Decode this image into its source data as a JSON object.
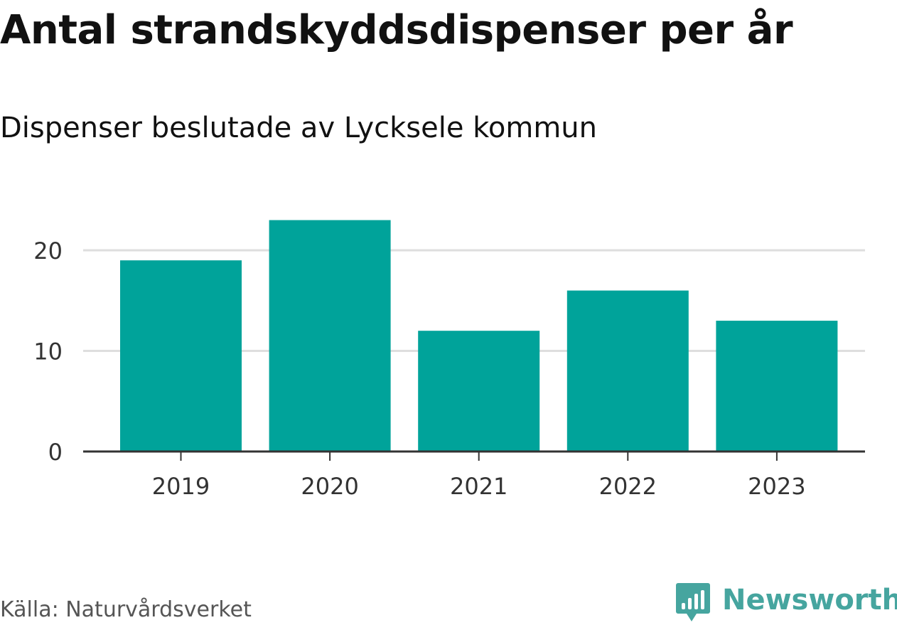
{
  "chart_data": {
    "type": "bar",
    "title": "Antal strandskyddsdispenser per år",
    "subtitle": "Dispenser beslutade av Lycksele kommun",
    "categories": [
      "2019",
      "2020",
      "2021",
      "2022",
      "2023"
    ],
    "values": [
      19,
      23,
      12,
      16,
      13
    ],
    "xlabel": "",
    "ylabel": "",
    "ylim": [
      0,
      23
    ],
    "yticks": [
      0,
      10,
      20
    ],
    "ytick_labels": [
      "0",
      "10",
      "20"
    ],
    "grid": true,
    "bar_color": "#00a39a",
    "grid_color": "#dedede",
    "axis_color": "#333333"
  },
  "footer": {
    "source": "Källa: Naturvårdsverket",
    "brand": "Newsworthy",
    "brand_color": "#46a59f"
  }
}
